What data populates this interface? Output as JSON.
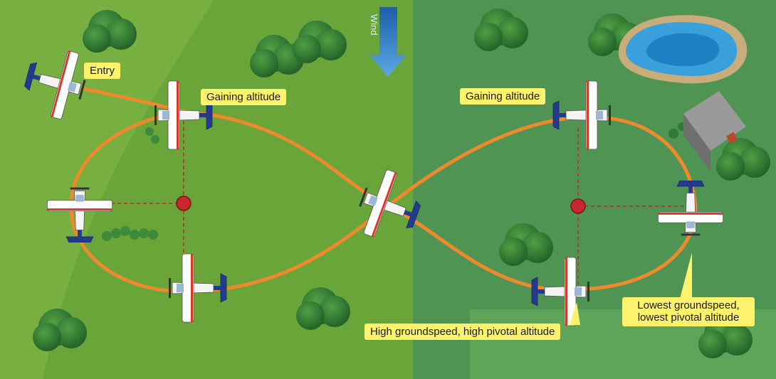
{
  "labels": {
    "entry": "Entry",
    "gaining_left": "Gaining altitude",
    "gaining_right": "Gaining altitude",
    "high": "High groundspeed, high pivotal altitude",
    "lowest": "Lowest groundspeed, lowest pivotal altitude"
  },
  "wind": "Wind",
  "colors": {
    "field_left": "#6aa53a",
    "field_left_light": "#82b847",
    "field_right": "#4f9452",
    "field_right_light": "#5ea55a",
    "path": "#ee8a2e",
    "pivot": "#c7272d",
    "label_bg": "#fdf26c",
    "wind_arrow": "#2e7bc4",
    "tree": "#2f7a34",
    "pond": "#3aa0dc",
    "house_roof": "#8a8a8a"
  },
  "icons": [
    "airplane-icon",
    "tree-icon",
    "pond-icon",
    "house-icon",
    "wind-arrow-icon",
    "pivot-point-icon"
  ]
}
